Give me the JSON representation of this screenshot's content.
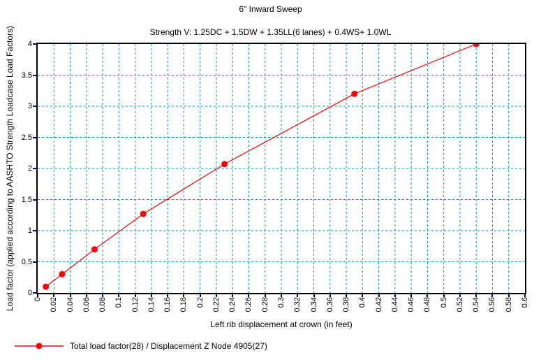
{
  "title": "6\" Inward Sweep",
  "subtitle": "Strength V: 1.25DC + 1.5DW + 1.35LL(6 lanes) + 0.4WS+ 1.0WL",
  "chart_data": {
    "type": "line",
    "title": "6\" Inward Sweep",
    "subtitle": "Strength V: 1.25DC + 1.5DW + 1.35LL(6 lanes) + 0.4WS+ 1.0WL",
    "xlabel": "Left rib displacement at crown (in feet)",
    "ylabel": "Load factor (applied according to AASHTO Strength Loadcase Load Factors)",
    "xlim": [
      0,
      0.6
    ],
    "ylim": [
      0,
      4
    ],
    "x_ticks": [
      "0",
      "0.02",
      "0.04",
      "0.06",
      "0.08",
      "0.1",
      "0.12",
      "0.14",
      "0.16",
      "0.18",
      "0.2",
      "0.22",
      "0.24",
      "0.26",
      "0.28",
      "0.3",
      "0.32",
      "0.34",
      "0.36",
      "0.38",
      "0.4",
      "0.42",
      "0.44",
      "0.46",
      "0.48",
      "0.5",
      "0.52",
      "0.54",
      "0.56",
      "0.58",
      "0.6"
    ],
    "y_ticks": [
      "0",
      "0.5",
      "1",
      "1.5",
      "2",
      "2.5",
      "3",
      "3.5",
      "4"
    ],
    "grid": true,
    "grid_style": "dashed",
    "legend_position": "bottom-left",
    "series": [
      {
        "name": "Total load factor(28) / Displacement Z Node 4905(27)",
        "color": "#ff0000",
        "marker": "circle",
        "x": [
          0.01,
          0.03,
          0.07,
          0.13,
          0.23,
          0.39,
          0.54
        ],
        "y": [
          0.1,
          0.3,
          0.7,
          1.27,
          2.07,
          3.2,
          4.0
        ]
      }
    ],
    "colors": {
      "line": "#ff0000",
      "marker": "#ff0000",
      "grid": "#009999",
      "tick_mark": "#000080",
      "axis_border": "#000000",
      "text": "#000000",
      "background": "#ffffff"
    }
  }
}
